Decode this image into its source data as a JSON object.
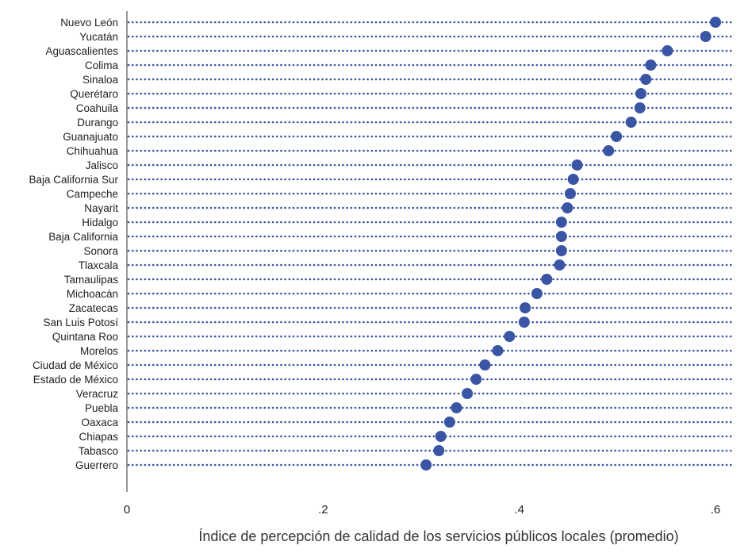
{
  "chart_data": {
    "type": "scatter",
    "orientation": "horizontal-dot-plot",
    "xlabel": "Índice de percepción de calidad de los servicios públicos locales (promedio)",
    "xlim": [
      0,
      0.62
    ],
    "xticks": [
      0,
      0.2,
      0.4,
      0.6
    ],
    "xtick_labels": [
      "0",
      ".2",
      ".4",
      ".6"
    ],
    "grid": "dotted-row-lines",
    "colors": {
      "point": "#3a55a4",
      "row_line": "#3a55a4",
      "text": "#222222"
    },
    "categories": [
      "Nuevo León",
      "Yucatán",
      "Aguascalientes",
      "Colima",
      "Sinaloa",
      "Querétaro",
      "Coahuila",
      "Durango",
      "Guanajuato",
      "Chihuahua",
      "Jalisco",
      "Baja California Sur",
      "Campeche",
      "Nayarit",
      "Hidalgo",
      "Baja California",
      "Sonora",
      "Tlaxcala",
      "Tamaulipas",
      "Michoacán",
      "Zacatecas",
      "San Luis Potosí",
      "Quintana Roo",
      "Morelos",
      "Ciudad de México",
      "Estado de México",
      "Veracruz",
      "Puebla",
      "Oaxaca",
      "Chiapas",
      "Tabasco",
      "Guerrero"
    ],
    "values": [
      0.6,
      0.59,
      0.551,
      0.534,
      0.529,
      0.524,
      0.523,
      0.514,
      0.499,
      0.491,
      0.459,
      0.455,
      0.452,
      0.449,
      0.443,
      0.443,
      0.443,
      0.441,
      0.428,
      0.418,
      0.406,
      0.405,
      0.39,
      0.378,
      0.365,
      0.356,
      0.347,
      0.336,
      0.329,
      0.32,
      0.318,
      0.305
    ]
  }
}
